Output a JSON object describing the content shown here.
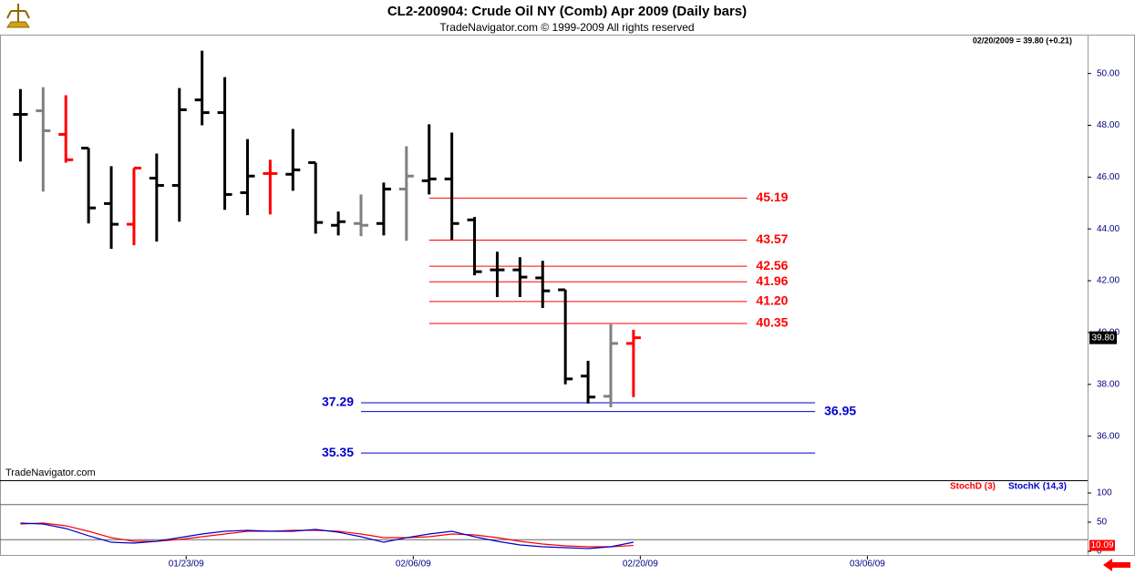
{
  "chart_data": [
    {
      "type": "ohlc",
      "title": "CL2-200904:  Crude Oil NY (Comb) Apr 2009  (Daily bars)",
      "subtitle": "TradeNavigator.com © 1999-2009 All rights reserved",
      "header": "02/20/2009 = 39.80 (+0.21)",
      "watermark": "TradeNavigator.com",
      "x": [
        1,
        2,
        3,
        4,
        5,
        6,
        7,
        8,
        9,
        10,
        11,
        12,
        13,
        14,
        15,
        16,
        17,
        18,
        19,
        20,
        21,
        22,
        23,
        24,
        25,
        26,
        27,
        28
      ],
      "open": [
        48.42,
        48.56,
        47.65,
        47.12,
        44.98,
        44.18,
        45.96,
        45.68,
        48.98,
        48.49,
        45.4,
        46.14,
        46.11,
        46.56,
        44.14,
        44.21,
        44.21,
        45.54,
        45.86,
        45.93,
        44.35,
        42.42,
        42.42,
        42.11,
        41.65,
        38.32,
        37.54,
        39.58
      ],
      "high": [
        49.4,
        49.47,
        49.16,
        47.12,
        46.42,
        46.35,
        46.91,
        49.44,
        50.88,
        49.86,
        47.47,
        46.67,
        47.86,
        46.56,
        44.67,
        45.33,
        45.79,
        47.19,
        48.04,
        47.72,
        44.46,
        43.12,
        42.91,
        42.77,
        41.65,
        38.91,
        40.32,
        40.11
      ],
      "low": [
        46.6,
        45.44,
        46.56,
        44.21,
        43.23,
        43.37,
        43.51,
        44.28,
        48.0,
        44.74,
        44.53,
        44.56,
        45.47,
        43.82,
        43.75,
        43.72,
        43.75,
        43.54,
        45.33,
        43.58,
        42.21,
        41.37,
        41.37,
        40.95,
        38.0,
        37.26,
        37.12,
        37.51
      ],
      "close": [
        48.42,
        47.79,
        46.67,
        44.81,
        44.18,
        46.35,
        45.68,
        48.6,
        48.49,
        45.33,
        46.04,
        46.14,
        46.28,
        44.25,
        44.28,
        44.14,
        45.54,
        46.04,
        45.93,
        44.21,
        42.35,
        42.42,
        42.14,
        41.61,
        38.21,
        37.51,
        39.58,
        39.8
      ],
      "colors": [
        "#000000",
        "#808080",
        "#ff0000",
        "#000000",
        "#000000",
        "#ff0000",
        "#000000",
        "#000000",
        "#000000",
        "#000000",
        "#000000",
        "#ff0000",
        "#000000",
        "#000000",
        "#000000",
        "#808080",
        "#000000",
        "#808080",
        "#000000",
        "#000000",
        "#000000",
        "#000000",
        "#000000",
        "#000000",
        "#000000",
        "#000000",
        "#808080",
        "#ff0000"
      ],
      "xlim": [
        0.1,
        48
      ],
      "ylim": [
        34.3,
        51.5
      ],
      "yticks": [
        {
          "value": 36,
          "label": "36.00"
        },
        {
          "value": 38,
          "label": "38.00"
        },
        {
          "value": 40,
          "label": "40.00"
        },
        {
          "value": 42,
          "label": "42.00"
        },
        {
          "value": 44,
          "label": "44.00"
        },
        {
          "value": 46,
          "label": "46.00"
        },
        {
          "value": 48,
          "label": "48.00"
        },
        {
          "value": 50,
          "label": "50.00"
        }
      ],
      "xticks": [
        {
          "value": 8.3,
          "label": "01/23/09"
        },
        {
          "value": 18.3,
          "label": "02/06/09"
        },
        {
          "value": 28.3,
          "label": "02/20/09"
        },
        {
          "value": 38.3,
          "label": "03/06/09"
        }
      ],
      "last": {
        "value": 39.8,
        "label": "39.80"
      },
      "levels": [
        {
          "value": 45.19,
          "label": "45.19",
          "color": "#ff0000",
          "x_from": 19,
          "x_to": 33,
          "label_position": "right"
        },
        {
          "value": 43.57,
          "label": "43.57",
          "color": "#ff0000",
          "x_from": 19,
          "x_to": 33,
          "label_position": "right"
        },
        {
          "value": 42.56,
          "label": "42.56",
          "color": "#ff0000",
          "x_from": 19,
          "x_to": 33,
          "label_position": "right"
        },
        {
          "value": 41.96,
          "label": "41.96",
          "color": "#ff0000",
          "x_from": 19,
          "x_to": 33,
          "label_position": "right"
        },
        {
          "value": 41.2,
          "label": "41.20",
          "color": "#ff0000",
          "x_from": 19,
          "x_to": 33,
          "label_position": "right"
        },
        {
          "value": 40.35,
          "label": "40.35",
          "color": "#ff0000",
          "x_from": 19,
          "x_to": 33,
          "label_position": "right"
        },
        {
          "value": 37.29,
          "label": "37.29",
          "color": "#0000cc",
          "x_from": 16,
          "x_to": 36,
          "label_position": "left"
        },
        {
          "value": 36.95,
          "label": "36.95",
          "color": "#0000cc",
          "x_from": 16,
          "x_to": 36,
          "label_position": "right"
        },
        {
          "value": 35.35,
          "label": "35.35",
          "color": "#0000cc",
          "x_from": 16,
          "x_to": 36,
          "label_position": "left"
        }
      ]
    },
    {
      "type": "line",
      "x": [
        1,
        2,
        3,
        4,
        5,
        6,
        7,
        8,
        9,
        10,
        11,
        12,
        13,
        14,
        15,
        16,
        17,
        18,
        19,
        20,
        21,
        22,
        23,
        24,
        25,
        26,
        27,
        28
      ],
      "series": [
        {
          "name": "StochD (3)",
          "color": "#ff0000",
          "values": [
            46.9,
            48.4,
            43.8,
            34.4,
            23.4,
            17.2,
            17.2,
            20.3,
            25.0,
            29.7,
            34.4,
            34.4,
            35.9,
            35.9,
            34.4,
            29.7,
            23.4,
            23.4,
            25.0,
            29.7,
            28.1,
            23.4,
            17.2,
            12.5,
            9.4,
            7.8,
            7.8,
            10.09
          ]
        },
        {
          "name": "StochK (14,3)",
          "color": "#0000cc",
          "values": [
            48.4,
            46.9,
            39.1,
            26.6,
            15.6,
            14.1,
            17.2,
            23.4,
            29.7,
            34.4,
            35.9,
            34.4,
            34.4,
            37.5,
            32.8,
            25.0,
            15.6,
            23.4,
            29.7,
            34.4,
            25.0,
            17.2,
            10.9,
            7.8,
            6.3,
            4.7,
            7.8,
            15.6
          ]
        }
      ],
      "last": {
        "value": 10.09,
        "label": "10.09"
      },
      "xlim": [
        0.1,
        48
      ],
      "ylim": [
        -7.8,
        120.3
      ],
      "yticks": [
        0,
        50,
        100
      ],
      "levels": [
        20,
        80
      ]
    }
  ]
}
